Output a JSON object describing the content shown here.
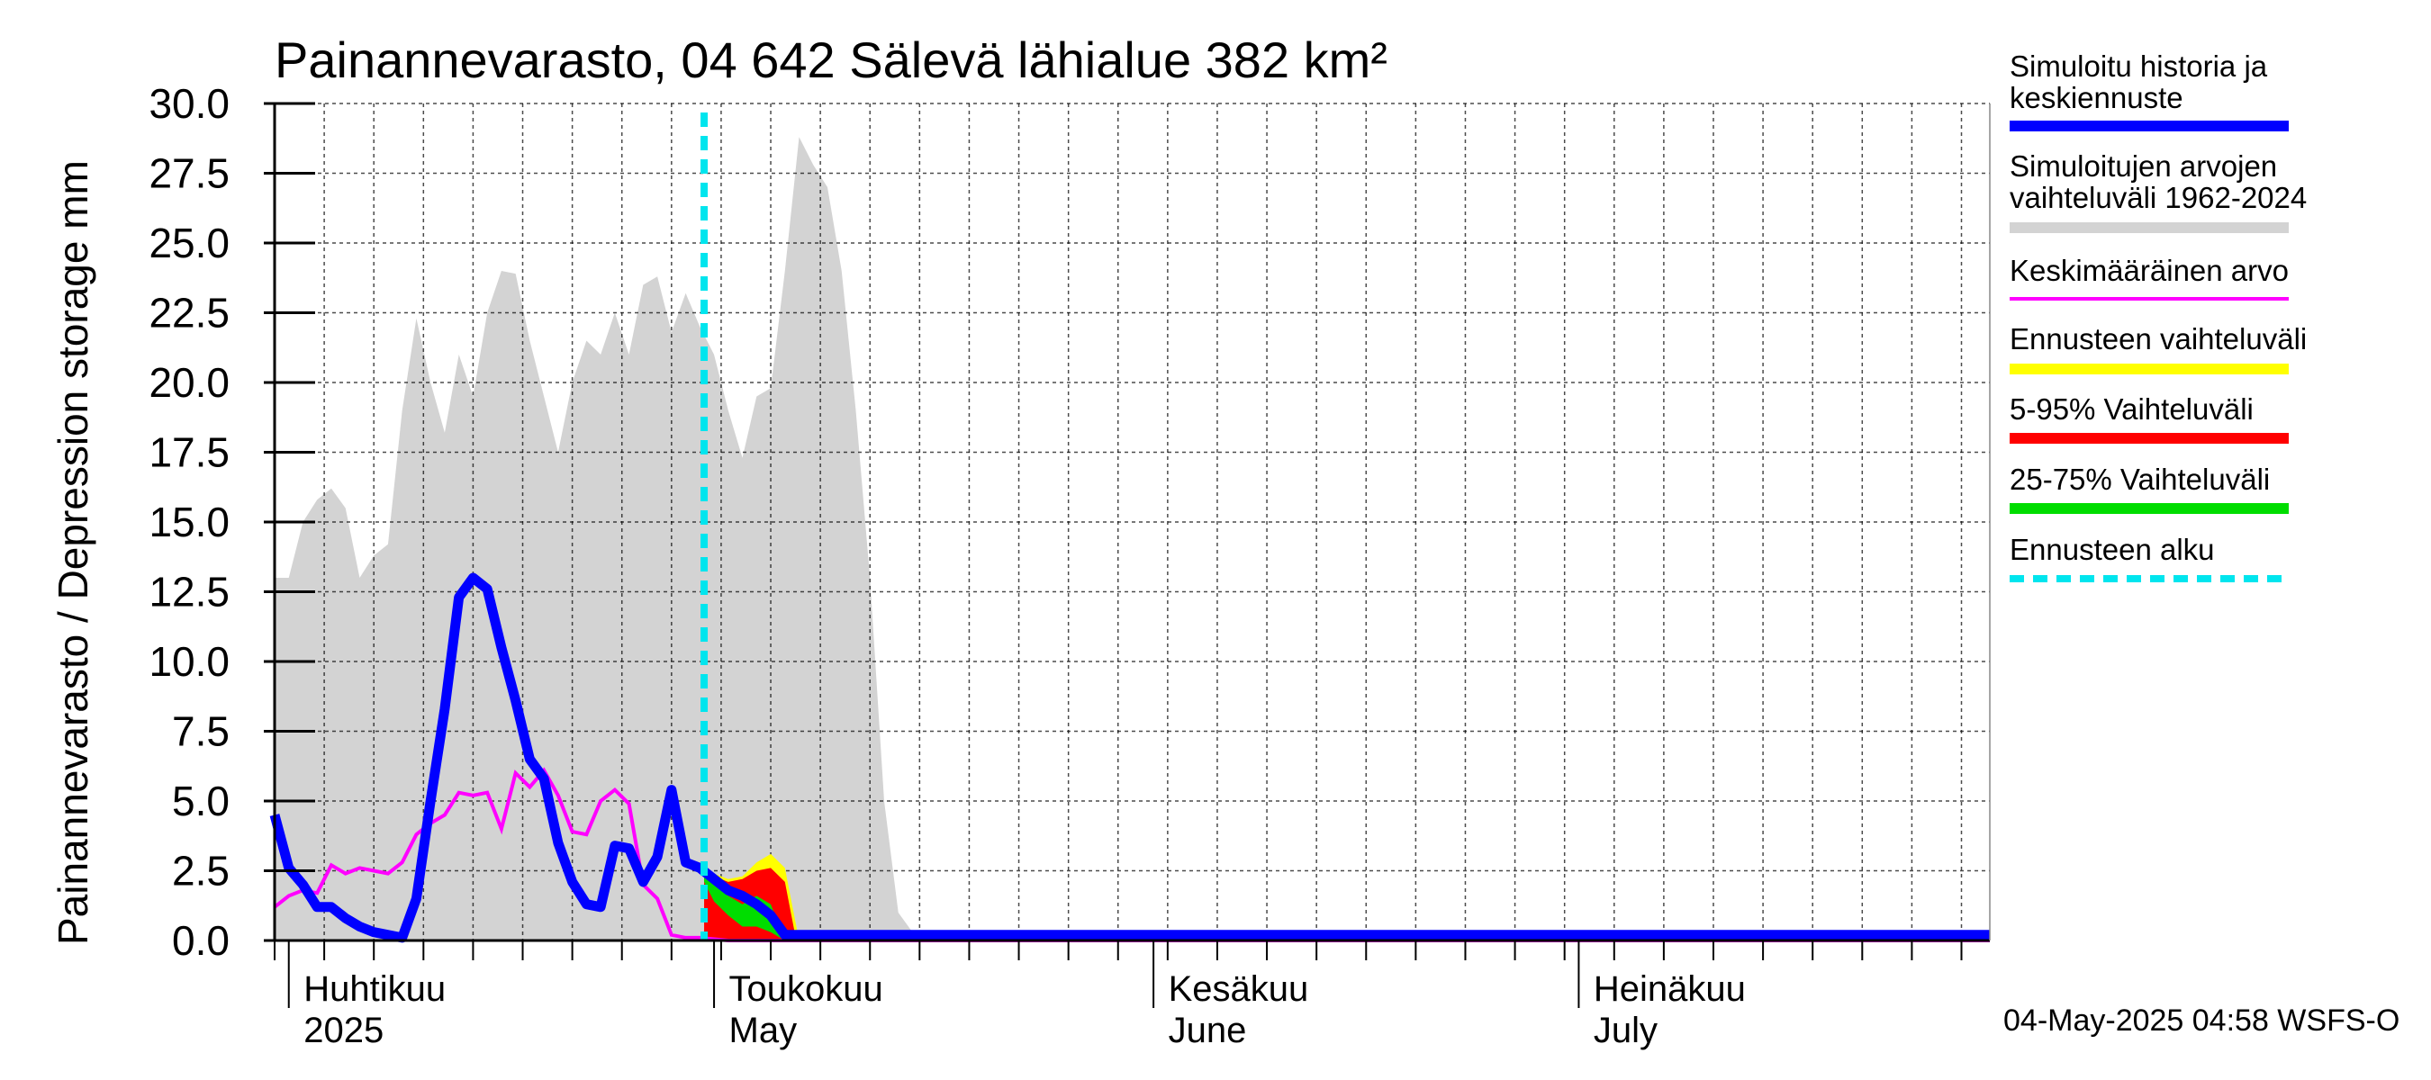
{
  "chart_data": {
    "type": "area",
    "title": "Painannevarasto, 04 642 Sälevä lähialue 382 km²",
    "ylabel": "Painannevarasto / Depression storage    mm",
    "ylim": [
      0,
      30
    ],
    "yticks": [
      "0.0",
      "2.5",
      "5.0",
      "7.5",
      "10.0",
      "12.5",
      "15.0",
      "17.5",
      "20.0",
      "22.5",
      "25.0",
      "27.5",
      "30.0"
    ],
    "x_range_days": [
      0,
      121
    ],
    "x_start": "2025-03-29",
    "grid": true,
    "month_labels": [
      {
        "day": 3,
        "line1": "Huhtikuu",
        "line2": "2025"
      },
      {
        "day": 33,
        "line1": "Toukokuu",
        "line2": "May"
      },
      {
        "day": 64,
        "line1": "Kesäkuu",
        "line2": "June"
      },
      {
        "day": 94,
        "line1": "Heinäkuu",
        "line2": "July"
      }
    ],
    "forecast_start_day": 30.3,
    "series": [
      {
        "name": "Simuloitujen arvojen vaihteluväli 1962-2024",
        "role": "hist_band",
        "color": "#d3d3d3",
        "x": [
          0,
          1,
          2,
          3,
          4,
          5,
          6,
          7,
          8,
          9,
          10,
          11,
          12,
          13,
          14,
          15,
          16,
          17,
          18,
          19,
          20,
          21,
          22,
          23,
          24,
          25,
          26,
          27,
          28,
          29,
          30,
          31,
          32,
          33,
          34,
          35,
          36,
          37,
          38,
          39,
          40,
          41,
          42,
          43,
          44,
          45,
          46,
          47,
          48,
          49,
          50,
          121
        ],
        "y": [
          13,
          13,
          15,
          15.8,
          16.2,
          15.5,
          13,
          13.8,
          14.2,
          19,
          22.3,
          20,
          18.2,
          21,
          19.5,
          22.5,
          24,
          23.9,
          21.5,
          19.5,
          17.5,
          20,
          21.5,
          21,
          22.5,
          21,
          23.5,
          23.8,
          21.8,
          23.2,
          22,
          21,
          19,
          17.3,
          19.5,
          19.8,
          24,
          28.8,
          27.8,
          27,
          24,
          19,
          13,
          5,
          1,
          0.3,
          0.1,
          0.2,
          0.2,
          0.1,
          0,
          0
        ]
      },
      {
        "name": "Ennusteen vaihteluväli",
        "role": "fc_yellow",
        "color": "#ffff00",
        "x": [
          30.3,
          31,
          32,
          33,
          34,
          35,
          36,
          37
        ],
        "upper": [
          2.7,
          2.4,
          2.2,
          2.3,
          2.8,
          3.1,
          2.6,
          0
        ],
        "lower": [
          0,
          0,
          0,
          0,
          0,
          0,
          0,
          0
        ]
      },
      {
        "name": "5-95% Vaihteluväli",
        "role": "fc_red",
        "color": "#ff0000",
        "x": [
          30.3,
          31,
          32,
          33,
          34,
          35,
          36,
          36.8
        ],
        "upper": [
          2.5,
          2.3,
          2.1,
          2.2,
          2.5,
          2.6,
          2.1,
          0
        ],
        "lower": [
          0,
          0,
          0,
          0,
          0,
          0,
          0,
          0
        ]
      },
      {
        "name": "25-75% Vaihteluväli",
        "role": "fc_green",
        "color": "#00dd00",
        "x": [
          30.3,
          31,
          32,
          33,
          34,
          35,
          36
        ],
        "upper": [
          2.4,
          2.1,
          1.6,
          1.3,
          1.6,
          1.3,
          0
        ],
        "lower": [
          2.1,
          1.4,
          0.9,
          0.5,
          0.5,
          0.3,
          0
        ]
      },
      {
        "name": "Keskimääräinen arvo",
        "role": "mean_line",
        "color": "#ff00ff",
        "x": [
          0,
          1,
          2,
          3,
          4,
          5,
          6,
          7,
          8,
          9,
          10,
          11,
          12,
          13,
          14,
          15,
          16,
          17,
          18,
          19,
          20,
          21,
          22,
          23,
          24,
          25,
          26,
          27,
          28,
          29,
          30,
          31,
          32,
          121
        ],
        "y": [
          1.2,
          1.6,
          1.8,
          1.7,
          2.7,
          2.4,
          2.6,
          2.5,
          2.4,
          2.8,
          3.8,
          4.2,
          4.5,
          5.3,
          5.2,
          5.3,
          4.0,
          6.0,
          5.5,
          6.1,
          5.2,
          3.9,
          3.8,
          5.0,
          5.4,
          4.9,
          2.0,
          1.5,
          0.2,
          0.1,
          0.1,
          0.05,
          0,
          0
        ]
      },
      {
        "name": "Simuloitu historia ja keskiennuste",
        "role": "main_line",
        "color": "#0000ff",
        "x": [
          0,
          1,
          2,
          3,
          4,
          5,
          6,
          7,
          8,
          9,
          10,
          11,
          12,
          13,
          14,
          15,
          16,
          17,
          18,
          19,
          20,
          21,
          22,
          23,
          24,
          25,
          26,
          27,
          28,
          29,
          30,
          31,
          32,
          33,
          34,
          35,
          36,
          121
        ],
        "y": [
          4.5,
          2.6,
          2.0,
          1.2,
          1.2,
          0.8,
          0.5,
          0.3,
          0.2,
          0.1,
          1.5,
          5.0,
          8.3,
          12.3,
          13.0,
          12.6,
          10.5,
          8.6,
          6.5,
          5.8,
          3.5,
          2.1,
          1.3,
          1.2,
          3.4,
          3.3,
          2.1,
          3.0,
          5.4,
          2.8,
          2.6,
          2.2,
          1.8,
          1.6,
          1.3,
          0.9,
          0.2,
          0.2
        ]
      }
    ],
    "small_blip": {
      "day": 66,
      "value": 0.3,
      "color": "#ffff00"
    }
  },
  "legend": {
    "items": [
      {
        "line1": "Simuloitu historia ja",
        "line2": "keskiennuste",
        "color": "#0000ff",
        "style": "thick"
      },
      {
        "line1": "Simuloitujen arvojen",
        "line2": "vaihteluväli 1962-2024",
        "color": "#d3d3d3",
        "style": "thick"
      },
      {
        "line1": "Keskimääräinen arvo",
        "line2": "",
        "color": "#ff00ff",
        "style": "thin"
      },
      {
        "line1": "Ennusteen vaihteluväli",
        "line2": "",
        "color": "#ffff00",
        "style": "thick"
      },
      {
        "line1": "5-95% Vaihteluväli",
        "line2": "",
        "color": "#ff0000",
        "style": "thick"
      },
      {
        "line1": "25-75% Vaihteluväli",
        "line2": "",
        "color": "#00dd00",
        "style": "thick"
      },
      {
        "line1": "Ennusteen alku",
        "line2": "",
        "color": "#00e5ee",
        "style": "dashed"
      }
    ]
  },
  "footer": "04-May-2025 04:58 WSFS-O"
}
